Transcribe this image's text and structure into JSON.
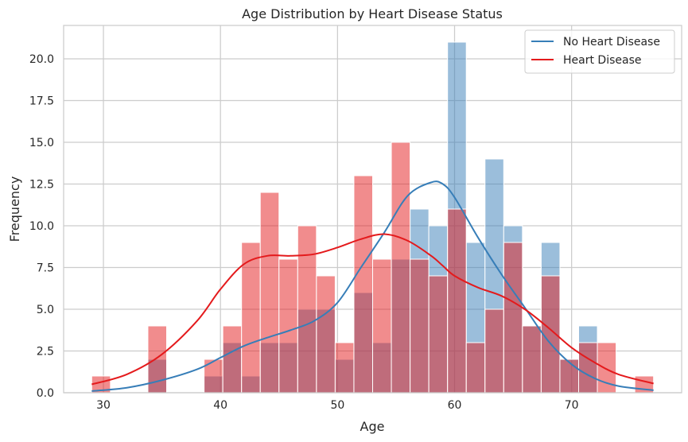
{
  "chart_data": {
    "type": "bar",
    "title": "Age Distribution by Heart Disease Status",
    "xlabel": "Age",
    "ylabel": "Frequency",
    "xlim": [
      26.6,
      79.4
    ],
    "ylim": [
      0,
      22
    ],
    "xticks": [
      30,
      40,
      50,
      60,
      70
    ],
    "yticks": [
      0,
      2.5,
      5,
      7.5,
      10,
      12.5,
      15,
      17.5,
      20
    ],
    "ytick_labels": [
      "0.0",
      "2.5",
      "5.0",
      "7.5",
      "10.0",
      "12.5",
      "15.0",
      "17.5",
      "20.0"
    ],
    "xtick_labels": [
      "30",
      "40",
      "50",
      "60",
      "70"
    ],
    "grid": true,
    "legend_position": "top-right",
    "bin_start": 29,
    "bin_width": 1.6,
    "series": [
      {
        "name": "No Heart Disease",
        "color": "#377eb8",
        "values": [
          0,
          0,
          0,
          2,
          0,
          0,
          1,
          3,
          1,
          3,
          3,
          5,
          5,
          2,
          6,
          3,
          8,
          11,
          10,
          21,
          9,
          14,
          10,
          4,
          9,
          2,
          4,
          0,
          0,
          0
        ]
      },
      {
        "name": "Heart Disease",
        "color": "#e41a1c",
        "values": [
          1,
          0,
          0,
          4,
          0,
          0,
          2,
          4,
          9,
          12,
          8,
          10,
          7,
          3,
          13,
          8,
          15,
          8,
          7,
          11,
          3,
          5,
          9,
          4,
          7,
          2,
          3,
          3,
          0,
          1
        ]
      }
    ],
    "kde_x": [
      29,
      32,
      35,
      38,
      40,
      42,
      44,
      46,
      48,
      50,
      52,
      54,
      56,
      58,
      59,
      60,
      62,
      64,
      66,
      68,
      70,
      72,
      74,
      77
    ],
    "kde_no": [
      0.1,
      0.3,
      0.75,
      1.4,
      2.1,
      2.8,
      3.3,
      3.75,
      4.3,
      5.4,
      7.5,
      9.6,
      11.8,
      12.6,
      12.5,
      11.7,
      9.3,
      7.1,
      5.1,
      3.1,
      1.7,
      0.85,
      0.4,
      0.15
    ],
    "kde_hd": [
      0.5,
      1.1,
      2.3,
      4.3,
      6.2,
      7.7,
      8.2,
      8.2,
      8.3,
      8.7,
      9.2,
      9.5,
      9.1,
      8.2,
      7.6,
      7.0,
      6.3,
      5.8,
      5.0,
      3.9,
      2.7,
      1.8,
      1.1,
      0.55
    ]
  }
}
